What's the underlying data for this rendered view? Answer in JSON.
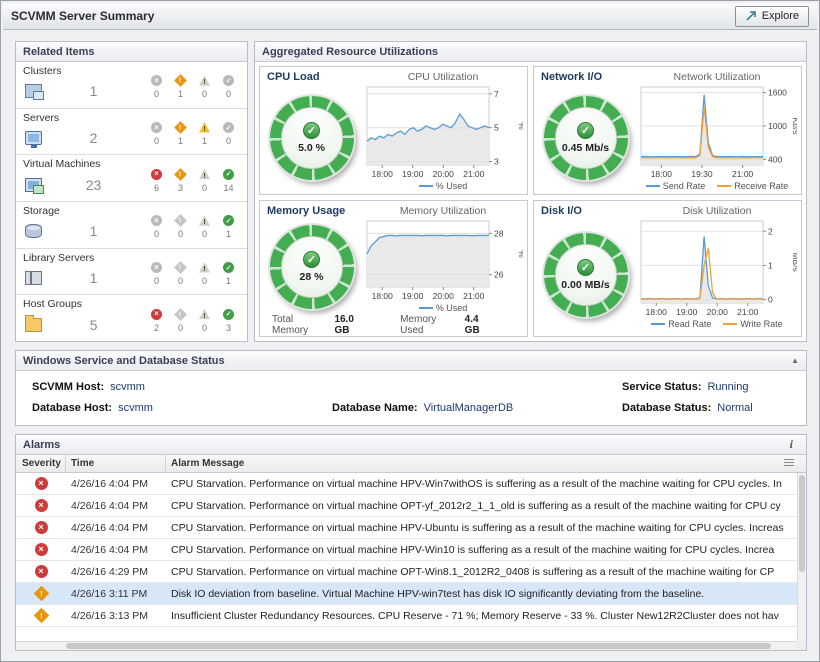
{
  "header": {
    "title": "SCVMM Server Summary",
    "explore_label": "Explore"
  },
  "related_items": {
    "title": "Related Items",
    "status_kinds": [
      "error",
      "warning",
      "caution",
      "normal"
    ],
    "items": [
      {
        "label": "Clusters",
        "count": "1",
        "icon": "clusters",
        "status_counts": [
          0,
          1,
          0,
          0
        ]
      },
      {
        "label": "Servers",
        "count": "2",
        "icon": "servers",
        "status_counts": [
          0,
          1,
          1,
          0
        ]
      },
      {
        "label": "Virtual Machines",
        "count": "23",
        "icon": "vms",
        "status_counts": [
          6,
          3,
          0,
          14
        ]
      },
      {
        "label": "Storage",
        "count": "1",
        "icon": "storage",
        "status_counts": [
          0,
          0,
          0,
          1
        ]
      },
      {
        "label": "Library Servers",
        "count": "1",
        "icon": "library",
        "status_counts": [
          0,
          0,
          0,
          1
        ]
      },
      {
        "label": "Host Groups",
        "count": "5",
        "icon": "hostgroups",
        "status_counts": [
          2,
          0,
          0,
          3
        ]
      }
    ]
  },
  "aggregated": {
    "title": "Aggregated Resource Utilizations",
    "quadrants": [
      {
        "gauge_title": "CPU Load",
        "gauge_value": "5.0 %",
        "status": "normal"
      },
      {
        "gauge_title": "Network I/O",
        "gauge_value": "0.45 Mb/s",
        "status": "normal"
      },
      {
        "gauge_title": "Memory Usage",
        "gauge_value": "28 %",
        "status": "normal"
      },
      {
        "gauge_title": "Disk I/O",
        "gauge_value": "0.00 MB/s",
        "status": "normal"
      }
    ],
    "memory_footer": {
      "total_label": "Total Memory",
      "total_value": "16.0 GB",
      "used_label": "Memory Used",
      "used_value": "4.4 GB"
    }
  },
  "service": {
    "title": "Windows Service and Database Status",
    "fields": [
      {
        "label": "SCVMM Host:",
        "value": "scvmm"
      },
      {
        "label": "Database Host:",
        "value": "scvmm"
      },
      {
        "label": "Database Name:",
        "value": "VirtualManagerDB"
      },
      {
        "label": "Service Status:",
        "value": "Running"
      },
      {
        "label": "Database Status:",
        "value": "Normal"
      }
    ]
  },
  "alarms": {
    "title": "Alarms",
    "columns": [
      "Severity",
      "Time",
      "Alarm Message"
    ],
    "rows": [
      {
        "severity": "error",
        "time": "4/26/16 4:04 PM",
        "selected": false,
        "message": "CPU Starvation. Performance on virtual machine HPV-Win7withOS is suffering as a result of the machine waiting for CPU cycles. In"
      },
      {
        "severity": "error",
        "time": "4/26/16 4:04 PM",
        "selected": false,
        "message": "CPU Starvation. Performance on virtual machine OPT-yf_2012r2_1_1_old is suffering as a result of the machine waiting for CPU cy"
      },
      {
        "severity": "error",
        "time": "4/26/16 4:04 PM",
        "selected": false,
        "message": "CPU Starvation. Performance on virtual machine HPV-Ubuntu is suffering as a result of the machine waiting for CPU cycles. Increas"
      },
      {
        "severity": "error",
        "time": "4/26/16 4:04 PM",
        "selected": false,
        "message": "CPU Starvation. Performance on virtual machine HPV-Win10 is suffering as a result of the machine waiting for CPU cycles. Increa"
      },
      {
        "severity": "error",
        "time": "4/26/16 4:29 PM",
        "selected": false,
        "message": "CPU Starvation. Performance on virtual machine OPT-Win8.1_2012R2_0408 is suffering as a result of the machine waiting for CP"
      },
      {
        "severity": "warning",
        "time": "4/26/16 3:11 PM",
        "selected": true,
        "message": "Disk IO deviation from baseline. Virtual Machine HPV-win7test has disk IO significantly deviating from the baseline."
      },
      {
        "severity": "warning",
        "time": "4/26/16 3:13 PM",
        "selected": false,
        "message": "Insufficient Cluster Redundancy Resources. CPU Reserve - 71 %; Memory Reserve - 33 %. Cluster New12R2Cluster does not hav"
      }
    ]
  },
  "chart_data": [
    {
      "type": "line",
      "title": "CPU Utilization",
      "unit": "%",
      "ylim": [
        2.8,
        7.4
      ],
      "y_ticks": [
        7,
        5,
        3
      ],
      "x_ticks": [
        "18:00",
        "19:00",
        "20:00",
        "21:00"
      ],
      "legend_position": "bottom",
      "grid": true,
      "series": [
        {
          "name": "% Used",
          "color": "#5b9bd5",
          "values": [
            4.2,
            4.4,
            4.3,
            4.5,
            4.4,
            4.6,
            4.5,
            4.7,
            4.8,
            4.6,
            4.9,
            5.0,
            4.8,
            4.9,
            5.1,
            5.0,
            4.9,
            5.0,
            5.2,
            5.1,
            5.0,
            5.3,
            5.8,
            5.5,
            5.1,
            5.0,
            4.9,
            5.0,
            5.1,
            5.0
          ]
        }
      ]
    },
    {
      "type": "line",
      "title": "Network Utilization",
      "unit": "Kb/s",
      "ylim": [
        300,
        1700
      ],
      "y_ticks": [
        1600,
        1000,
        400
      ],
      "x_ticks": [
        "18:00",
        "19:30",
        "21:00"
      ],
      "legend_position": "bottom",
      "grid": true,
      "series": [
        {
          "name": "Send Rate",
          "color": "#5b9bd5",
          "values": [
            450,
            455,
            450,
            448,
            452,
            450,
            449,
            451,
            450,
            452,
            448,
            450,
            451,
            449,
            500,
            1560,
            700,
            470,
            452,
            450,
            449,
            451,
            450,
            448,
            452,
            450,
            449,
            450,
            451,
            450
          ]
        },
        {
          "name": "Receive Rate",
          "color": "#f0a13c",
          "values": [
            430,
            432,
            430,
            428,
            431,
            430,
            429,
            430,
            431,
            430,
            428,
            430,
            429,
            428,
            470,
            1340,
            620,
            450,
            431,
            430,
            429,
            430,
            431,
            430,
            428,
            430,
            429,
            430,
            431,
            430
          ]
        }
      ]
    },
    {
      "type": "line",
      "title": "Memory Utilization",
      "unit": "%",
      "ylim": [
        25.4,
        28.6
      ],
      "y_ticks": [
        28,
        26
      ],
      "x_ticks": [
        "18:00",
        "19:00",
        "20:00",
        "21:00"
      ],
      "legend_position": "bottom",
      "grid": true,
      "series": [
        {
          "name": "% Used",
          "color": "#5b9bd5",
          "values": [
            27.0,
            27.4,
            27.6,
            27.8,
            27.85,
            27.9,
            27.9,
            27.88,
            27.9,
            27.9,
            27.9,
            27.9,
            27.9,
            27.88,
            27.9,
            27.9,
            27.9,
            27.9,
            27.9,
            27.88,
            27.9,
            27.9,
            27.9,
            27.9,
            27.9,
            27.88,
            27.9,
            27.9,
            27.9,
            27.9
          ]
        }
      ]
    },
    {
      "type": "line",
      "title": "Disk Utilization",
      "unit": "MB/s",
      "ylim": [
        -0.1,
        2.3
      ],
      "y_ticks": [
        2,
        1,
        0
      ],
      "x_ticks": [
        "18:00",
        "19:00",
        "20:00",
        "21:00"
      ],
      "legend_position": "bottom",
      "grid": true,
      "series": [
        {
          "name": "Read Rate",
          "color": "#5b9bd5",
          "values": [
            0.02,
            0.02,
            0.03,
            0.02,
            0.02,
            0.03,
            0.02,
            0.02,
            0.03,
            0.02,
            0.02,
            0.03,
            0.02,
            0.02,
            0.05,
            1.85,
            0.4,
            0.05,
            0.02,
            0.03,
            0.02,
            0.02,
            0.03,
            0.02,
            0.02,
            0.03,
            0.02,
            0.02,
            0.03,
            0.02
          ]
        },
        {
          "name": "Write Rate",
          "color": "#f0a13c",
          "values": [
            0.01,
            0.01,
            0.02,
            0.01,
            0.01,
            0.02,
            0.01,
            0.01,
            0.02,
            0.01,
            0.01,
            0.02,
            0.01,
            0.01,
            0.03,
            1.0,
            1.5,
            0.2,
            0.01,
            0.02,
            0.01,
            0.01,
            0.02,
            0.01,
            0.01,
            0.02,
            0.01,
            0.01,
            0.02,
            0.01
          ]
        }
      ]
    }
  ]
}
